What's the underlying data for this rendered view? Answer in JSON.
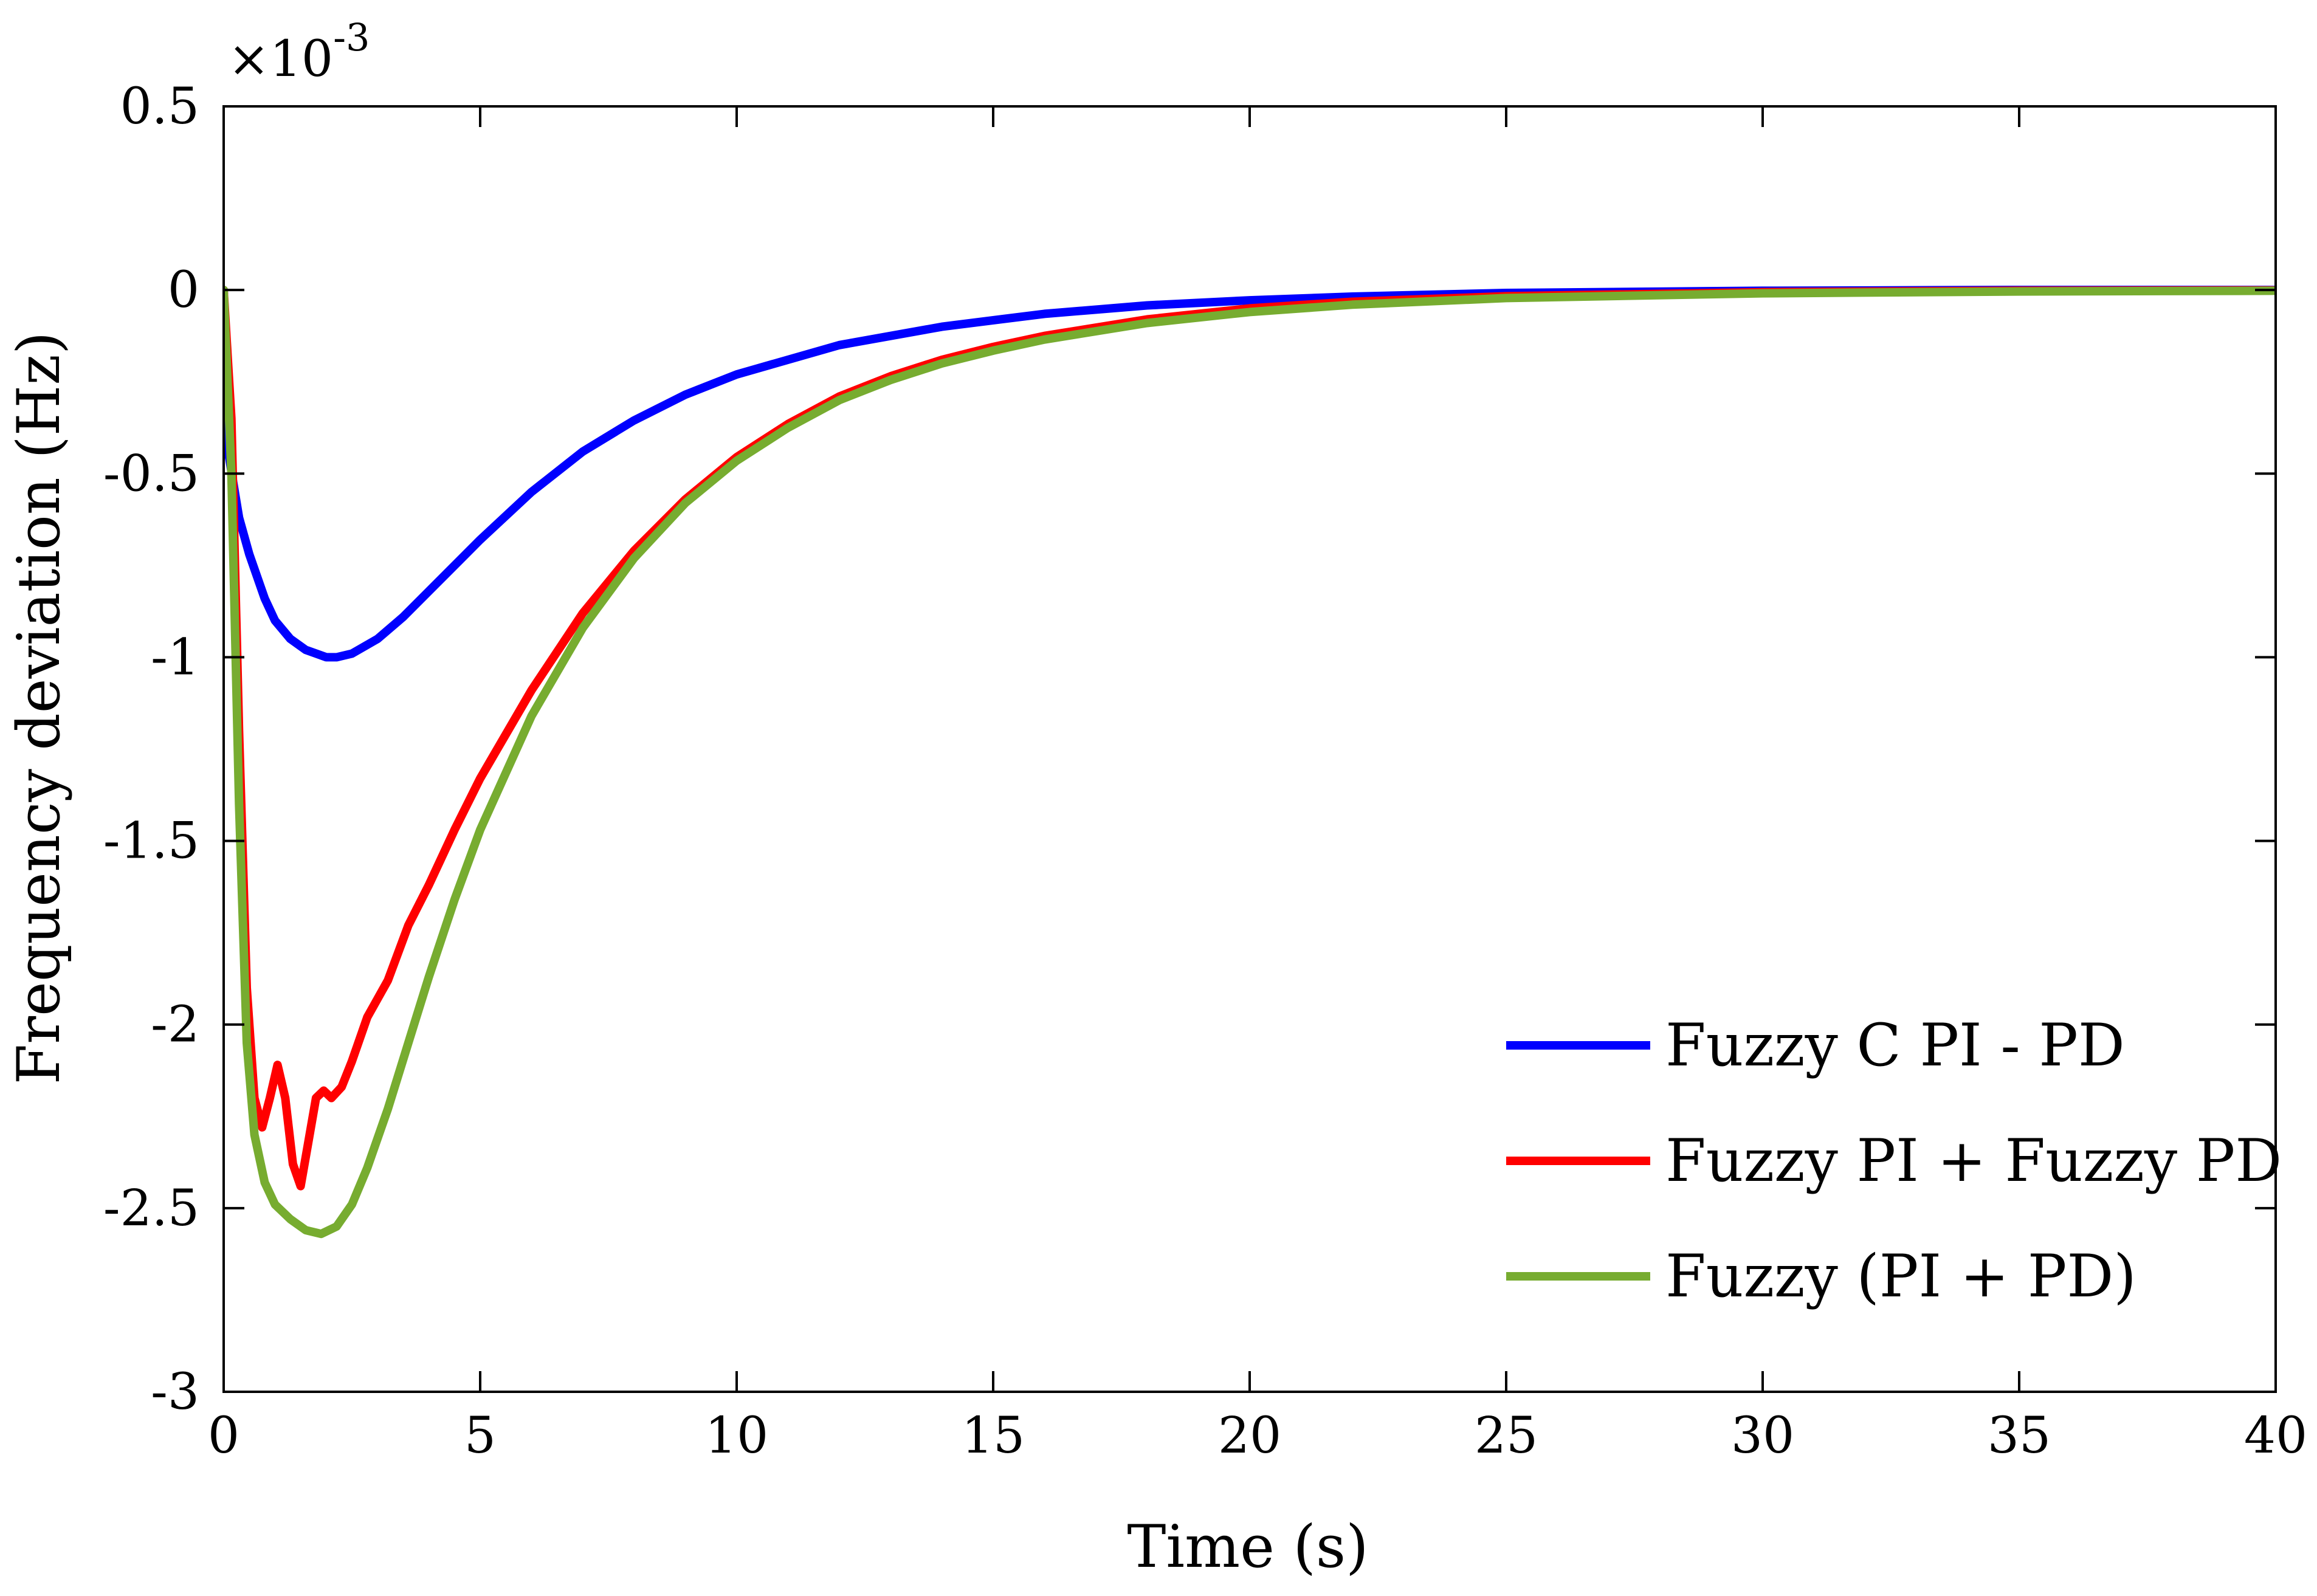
{
  "chart_data": {
    "type": "line",
    "title": "",
    "xlabel": "Time (s)",
    "ylabel": "Frequency deviation (Hz)",
    "y_multiplier": "×10",
    "y_exponent": "-3",
    "xlim": [
      0,
      40
    ],
    "ylim": [
      -3,
      0.5
    ],
    "x_ticks": [
      0,
      5,
      10,
      15,
      20,
      25,
      30,
      35,
      40
    ],
    "x_tick_labels": [
      "0",
      "5",
      "10",
      "15",
      "20",
      "25",
      "30",
      "35",
      "40"
    ],
    "y_ticks": [
      0.5,
      0,
      -0.5,
      -1,
      -1.5,
      -2,
      -2.5,
      -3
    ],
    "y_tick_labels": [
      "0.5",
      "0",
      "-0.5",
      "-1",
      "-1.5",
      "-2",
      "-2.5",
      "-3"
    ],
    "grid": false,
    "legend_position": "bottom-right",
    "series": [
      {
        "name": "Fuzzy C PI - PD",
        "color": "#0000ff",
        "x": [
          0,
          0.1,
          0.3,
          0.5,
          0.8,
          1.0,
          1.3,
          1.6,
          2.0,
          2.2,
          2.5,
          3,
          3.5,
          4,
          5,
          6,
          7,
          8,
          9,
          10,
          12,
          14,
          16,
          18,
          20,
          22,
          25,
          30,
          35,
          40
        ],
        "y": [
          0,
          -0.45,
          -0.62,
          -0.72,
          -0.84,
          -0.9,
          -0.95,
          -0.98,
          -1.0,
          -1.0,
          -0.99,
          -0.95,
          -0.89,
          -0.82,
          -0.68,
          -0.55,
          -0.44,
          -0.355,
          -0.285,
          -0.23,
          -0.15,
          -0.1,
          -0.065,
          -0.042,
          -0.028,
          -0.018,
          -0.008,
          -0.002,
          0.0,
          0.0
        ]
      },
      {
        "name": "Fuzzy PI + Fuzzy PD",
        "color": "#ff0000",
        "x": [
          0,
          0.15,
          0.3,
          0.45,
          0.6,
          0.75,
          0.9,
          1.05,
          1.2,
          1.35,
          1.5,
          1.65,
          1.8,
          1.95,
          2.1,
          2.3,
          2.5,
          2.8,
          3.2,
          3.6,
          4,
          4.5,
          5,
          6,
          7,
          8,
          9,
          10,
          11,
          12,
          13,
          14,
          15,
          16,
          18,
          20,
          22,
          25,
          30,
          35,
          40
        ],
        "y": [
          0,
          -0.35,
          -1.2,
          -1.9,
          -2.2,
          -2.28,
          -2.2,
          -2.11,
          -2.2,
          -2.38,
          -2.44,
          -2.32,
          -2.2,
          -2.18,
          -2.2,
          -2.17,
          -2.1,
          -1.98,
          -1.88,
          -1.73,
          -1.62,
          -1.47,
          -1.33,
          -1.09,
          -0.88,
          -0.71,
          -0.57,
          -0.455,
          -0.365,
          -0.29,
          -0.235,
          -0.19,
          -0.155,
          -0.125,
          -0.08,
          -0.05,
          -0.032,
          -0.017,
          -0.006,
          -0.002,
          -0.001
        ]
      },
      {
        "name": "Fuzzy (PI + PD)",
        "color": "#77ac30",
        "x": [
          0,
          0.15,
          0.3,
          0.45,
          0.6,
          0.8,
          1.0,
          1.3,
          1.6,
          1.9,
          2.2,
          2.5,
          2.8,
          3.2,
          3.6,
          4,
          4.5,
          5,
          6,
          7,
          8,
          9,
          10,
          11,
          12,
          13,
          14,
          15,
          16,
          18,
          20,
          22,
          25,
          30,
          35,
          40
        ],
        "y": [
          0,
          -0.5,
          -1.4,
          -2.05,
          -2.3,
          -2.43,
          -2.49,
          -2.53,
          -2.56,
          -2.57,
          -2.55,
          -2.49,
          -2.39,
          -2.23,
          -2.05,
          -1.87,
          -1.66,
          -1.47,
          -1.16,
          -0.92,
          -0.73,
          -0.58,
          -0.465,
          -0.375,
          -0.3,
          -0.245,
          -0.2,
          -0.165,
          -0.135,
          -0.09,
          -0.06,
          -0.04,
          -0.022,
          -0.009,
          -0.004,
          -0.002
        ]
      }
    ]
  }
}
